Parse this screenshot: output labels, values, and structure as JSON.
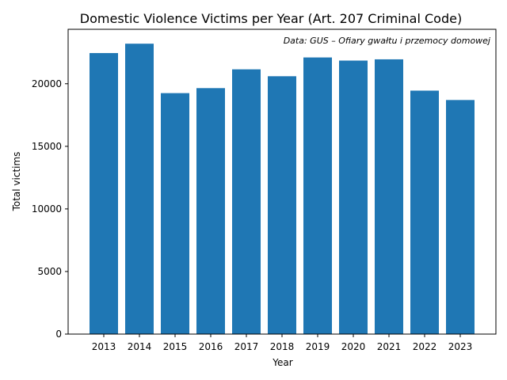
{
  "chart_data": {
    "type": "bar",
    "title": "Domestic Violence Victims per Year (Art. 207 Criminal Code)",
    "annotation": "Data: GUS – Ofiary gwałtu i przemocy domowej",
    "xlabel": "Year",
    "ylabel": "Total victims",
    "categories": [
      "2013",
      "2014",
      "2015",
      "2016",
      "2017",
      "2018",
      "2019",
      "2020",
      "2021",
      "2022",
      "2023"
    ],
    "values": [
      22450,
      23200,
      19250,
      19650,
      21150,
      20600,
      22100,
      21850,
      21950,
      19450,
      18700
    ],
    "ylim": [
      0,
      24350
    ],
    "yticks": [
      0,
      5000,
      10000,
      15000,
      20000
    ],
    "bar_color": "#1f77b4",
    "grid": false,
    "legend": "none"
  }
}
